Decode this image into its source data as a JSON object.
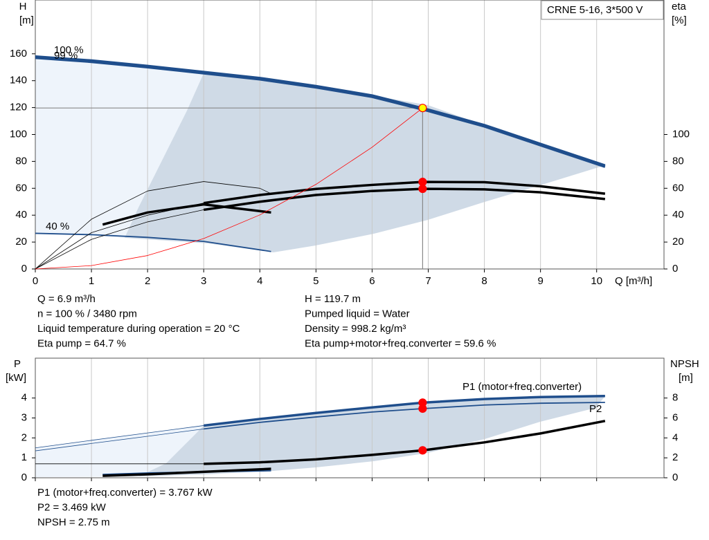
{
  "chart_data": [
    {
      "type": "line",
      "title": "CRNE 5-16, 3*500 V",
      "x_label": "Q [m³/h]",
      "y_label": "H",
      "y_unit": "[m]",
      "y2_label": "eta",
      "y2_unit": "[%]",
      "xlim": [
        0,
        11.2
      ],
      "xticks": [
        0,
        1,
        2,
        3,
        4,
        5,
        6,
        7,
        8,
        9,
        10
      ],
      "xtick_labels": true,
      "ylim": [
        0,
        200
      ],
      "yticks": [
        0,
        20,
        40,
        60,
        80,
        100,
        120,
        140,
        160
      ],
      "y2lim": [
        0,
        200
      ],
      "y2ticks": [
        0,
        20,
        40,
        60,
        80,
        100
      ],
      "grid": "x",
      "series": [
        {
          "name": "100 %",
          "color": "#1f4e8c",
          "style": "thick",
          "x": [
            0,
            1,
            2,
            3,
            4,
            5,
            6,
            7,
            8,
            9,
            10.15
          ],
          "values": [
            158,
            155,
            151,
            146.5,
            142,
            136,
            129,
            118.5,
            107,
            93,
            77
          ]
        },
        {
          "name": "99 %",
          "color": "#1f4e8c",
          "style": "thick",
          "x": [
            0,
            1,
            2,
            3,
            4,
            5,
            6,
            7,
            8,
            9,
            10.15
          ],
          "values": [
            157,
            154,
            150,
            145.5,
            141,
            135,
            128,
            117.5,
            106,
            92,
            76
          ]
        },
        {
          "name": "40 %",
          "color": "#1f4e8c",
          "style": "normal",
          "x": [
            0,
            1,
            2,
            3,
            4.2
          ],
          "values": [
            26.5,
            25.5,
            23.5,
            20.5,
            13
          ]
        },
        {
          "color": "#000000",
          "style": "thick",
          "axis": "y2",
          "x": [
            1.2,
            2,
            3,
            4.2
          ],
          "values": [
            33,
            42,
            48,
            42
          ]
        },
        {
          "color": "#000000",
          "style": "thick",
          "axis": "y2",
          "x": [
            3,
            4,
            5,
            6,
            6.9,
            8,
            9,
            10.15
          ],
          "values": [
            49,
            55,
            59.5,
            62.5,
            64.7,
            64.5,
            61.5,
            56
          ]
        },
        {
          "color": "#000000",
          "style": "thick",
          "axis": "y2",
          "x": [
            3,
            4,
            5,
            6,
            6.9,
            8,
            9,
            10.15
          ],
          "values": [
            44,
            50,
            55,
            58,
            59.6,
            59.2,
            57,
            52
          ]
        },
        {
          "color": "#000000",
          "style": "thin",
          "axis": "y2",
          "x": [
            0,
            1,
            2,
            3
          ],
          "values": [
            0,
            27,
            40,
            49
          ]
        },
        {
          "color": "#000000",
          "style": "thin",
          "axis": "y2",
          "x": [
            0,
            1,
            2,
            3
          ],
          "values": [
            0,
            22,
            35,
            44
          ]
        },
        {
          "color": "#000000",
          "style": "thin",
          "axis": "y2",
          "x": [
            0,
            1,
            2,
            3,
            4,
            4.2
          ],
          "values": [
            0,
            37,
            58,
            65,
            60,
            56
          ]
        },
        {
          "color": "#ff0000",
          "style": "thin",
          "x": [
            0,
            1,
            2,
            3,
            4,
            5,
            6,
            6.9
          ],
          "values": [
            0,
            2.5,
            10,
            22.6,
            40.2,
            62.9,
            90.5,
            119.7
          ]
        }
      ],
      "markers": [
        {
          "x": 6.9,
          "y": 119.7,
          "color": "#ffff00",
          "crosshair": true
        },
        {
          "x": 6.9,
          "y": 64.7,
          "color": "#ff0000",
          "axis": "y2"
        },
        {
          "x": 6.9,
          "y": 59.6,
          "color": "#ff0000",
          "axis": "y2"
        }
      ]
    },
    {
      "type": "line",
      "y_label": "P",
      "y_unit": "[kW]",
      "y2_label": "NPSH",
      "y2_unit": "[m]",
      "xlim": [
        0,
        11.2
      ],
      "xticks": [
        0,
        1,
        2,
        3,
        4,
        5,
        6,
        7,
        8,
        9,
        10
      ],
      "xtick_labels": false,
      "ylim": [
        0,
        6
      ],
      "yticks": [
        0,
        1,
        2,
        3,
        4
      ],
      "y2lim": [
        0,
        12
      ],
      "y2ticks": [
        0,
        2,
        4,
        6,
        8
      ],
      "grid": "x",
      "series": [
        {
          "name": "P1 (motor+freq.converter)",
          "color": "#1f4e8c",
          "style": "thick",
          "x": [
            3,
            4,
            5,
            6,
            6.9,
            8,
            9,
            10.15
          ],
          "values": [
            2.62,
            2.95,
            3.25,
            3.53,
            3.767,
            3.95,
            4.05,
            4.1
          ]
        },
        {
          "name": "P2",
          "color": "#1f4e8c",
          "style": "normal",
          "x": [
            3,
            4,
            5,
            6,
            6.9,
            8,
            9,
            10.15
          ],
          "values": [
            2.45,
            2.78,
            3.05,
            3.3,
            3.469,
            3.65,
            3.74,
            3.78
          ]
        },
        {
          "color": "#1f4e8c",
          "style": "thin",
          "x": [
            0,
            1,
            2,
            3
          ],
          "values": [
            1.5,
            1.88,
            2.25,
            2.62
          ]
        },
        {
          "color": "#1f4e8c",
          "style": "thin",
          "x": [
            0,
            1,
            2,
            3
          ],
          "values": [
            1.35,
            1.72,
            2.08,
            2.45
          ]
        },
        {
          "color": "#1f4e8c",
          "style": "normal",
          "x": [
            1.2,
            2,
            3,
            4.2
          ],
          "values": [
            0.17,
            0.24,
            0.3,
            0.35
          ]
        },
        {
          "color": "#000000",
          "style": "thick",
          "axis": "y2",
          "x": [
            3,
            4,
            5,
            6,
            6.9,
            8,
            9,
            10.15
          ],
          "values": [
            1.4,
            1.55,
            1.85,
            2.3,
            2.75,
            3.55,
            4.45,
            5.7
          ]
        },
        {
          "color": "#000000",
          "style": "thin",
          "axis": "y2",
          "x": [
            0,
            3
          ],
          "values": [
            1.4,
            1.4
          ]
        },
        {
          "color": "#000000",
          "style": "thick",
          "axis": "y2",
          "x": [
            1.2,
            2,
            3,
            4.2
          ],
          "values": [
            0.2,
            0.35,
            0.6,
            0.9
          ]
        }
      ],
      "markers": [
        {
          "x": 6.9,
          "y": 3.767,
          "color": "#ff0000"
        },
        {
          "x": 6.9,
          "y": 3.469,
          "color": "#ff0000"
        },
        {
          "x": 6.9,
          "y": 2.75,
          "color": "#ff0000",
          "axis": "y2"
        }
      ]
    }
  ],
  "info": [
    {
      "left": [
        "Q = 6.9 m³/h",
        "n = 100 % / 3480 rpm",
        "Liquid temperature during operation = 20 °C",
        "Eta pump = 64.7 %"
      ],
      "right": [
        "H = 119.7 m",
        "Pumped liquid = Water",
        "Density = 998.2 kg/m³",
        "Eta pump+motor+freq.converter = 59.6 %"
      ]
    },
    {
      "left": [
        "P1 (motor+freq.converter) = 3.767 kW",
        "P2 = 3.469 kW",
        "NPSH = 2.75 m"
      ]
    }
  ]
}
